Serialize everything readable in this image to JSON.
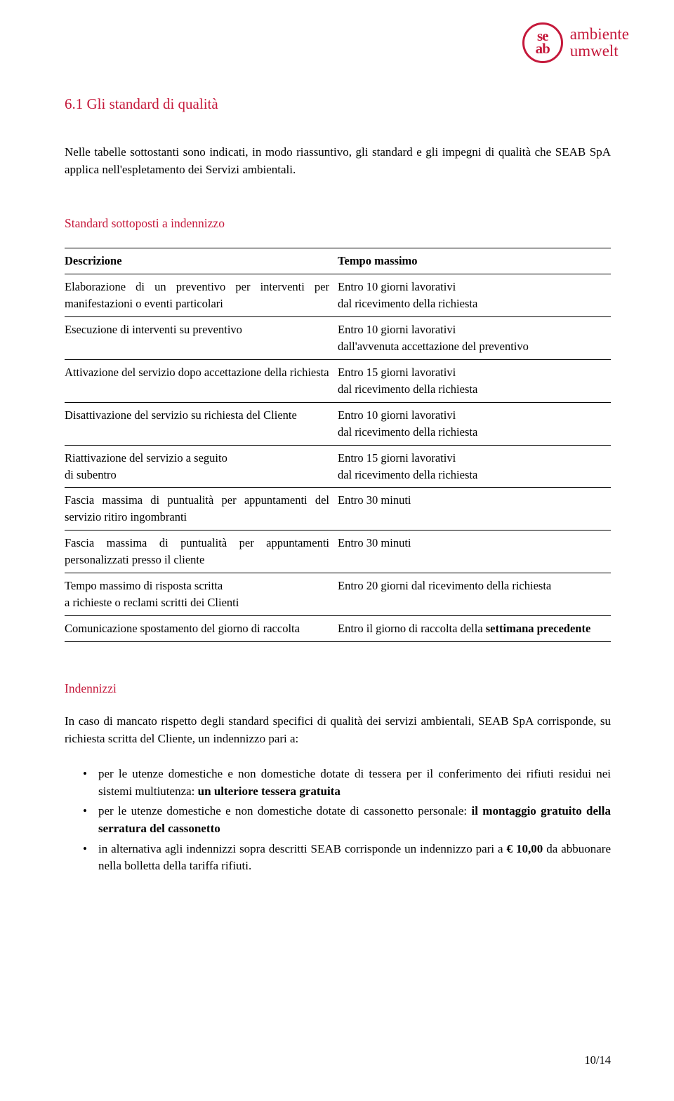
{
  "logo": {
    "mark_line1": "se",
    "mark_line2": "ab",
    "text_line1": "ambiente",
    "text_line2": "umwelt",
    "brand_color": "#c5193b"
  },
  "section_title": "6.1 Gli standard di qualità",
  "intro_paragraph": "Nelle tabelle sottostanti sono indicati, in modo riassuntivo, gli standard e gli impegni di qualità che SEAB SpA applica nell'espletamento dei Servizi ambientali.",
  "table_heading": "Standard sottoposti a indennizzo",
  "table": {
    "col1_header": "Descrizione",
    "col2_header": "Tempo massimo",
    "rows": [
      {
        "desc": "Elaborazione di un preventivo per interventi per manifestazioni o eventi particolari",
        "tempo_l1": "Entro 10 giorni lavorativi",
        "tempo_l2": "dal ricevimento della richiesta"
      },
      {
        "desc": "Esecuzione di interventi su preventivo",
        "tempo_l1": "Entro 10 giorni lavorativi",
        "tempo_l2": "dall'avvenuta accettazione del preventivo"
      },
      {
        "desc": "Attivazione del servizio dopo accettazione della richiesta",
        "tempo_l1": "Entro 15 giorni lavorativi",
        "tempo_l2": "dal ricevimento della richiesta"
      },
      {
        "desc": "Disattivazione del servizio su richiesta del Cliente",
        "tempo_l1": "Entro 10 giorni lavorativi",
        "tempo_l2": "dal ricevimento della richiesta"
      },
      {
        "desc_l1": "Riattivazione del servizio a seguito",
        "desc_l2": "di subentro",
        "tempo_l1": "Entro 15 giorni lavorativi",
        "tempo_l2": "dal ricevimento della richiesta"
      },
      {
        "desc": "Fascia massima di puntualità per appuntamenti del servizio ritiro ingombranti",
        "tempo": "Entro 30 minuti"
      },
      {
        "desc": "Fascia massima di puntualità per appuntamenti personalizzati presso il cliente",
        "tempo": "Entro 30 minuti"
      },
      {
        "desc_l1": "Tempo massimo di risposta scritta",
        "desc_l2": "a richieste o reclami scritti dei Clienti",
        "tempo": "Entro 20 giorni dal ricevimento della richiesta"
      },
      {
        "desc": "Comunicazione spostamento del giorno di raccolta",
        "tempo_prefix": "Entro il giorno di raccolta della ",
        "tempo_bold": "settimana precedente"
      }
    ]
  },
  "indennizzi_heading": "Indennizzi",
  "indennizzi_para": "In caso di mancato rispetto degli standard specifici di qualità dei servizi ambientali, SEAB SpA corrisponde, su richiesta scritta del Cliente, un indennizzo pari a:",
  "bullets": {
    "b1_text": "per le utenze domestiche e non domestiche dotate di tessera per il conferimento dei rifiuti residui nei sistemi multiutenza: ",
    "b1_bold": "un ulteriore tessera gratuita",
    "b2_text": "per le utenze domestiche e non domestiche dotate di cassonetto personale: ",
    "b2_bold": "il montaggio gratuito della serratura del cassonetto",
    "b3_text_a": "in alternativa agli indennizzi sopra descritti SEAB corrisponde un indennizzo pari a ",
    "b3_bold": "€ 10,00",
    "b3_text_b": " da abbuonare nella bolletta della tariffa rifiuti."
  },
  "page_number": "10/14"
}
